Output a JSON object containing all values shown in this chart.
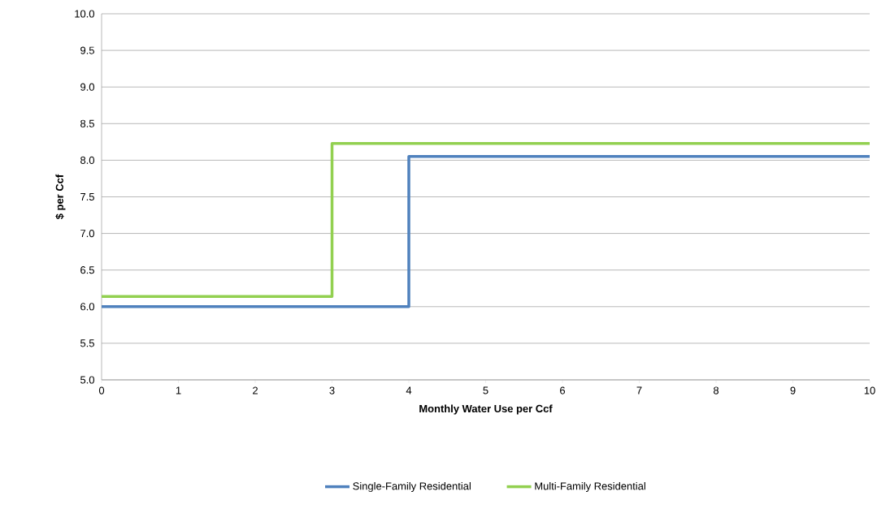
{
  "chart_data": {
    "type": "step",
    "xlabel": "Monthly Water Use per Ccf",
    "ylabel": "$ per Ccf",
    "xlim": [
      0,
      10
    ],
    "ylim": [
      5.0,
      10.0
    ],
    "xticks": [
      0,
      1,
      2,
      3,
      4,
      5,
      6,
      7,
      8,
      9,
      10
    ],
    "yticks": [
      {
        "value": 5.0,
        "label": "5.0"
      },
      {
        "value": 5.5,
        "label": "5.5"
      },
      {
        "value": 6.0,
        "label": "6.0"
      },
      {
        "value": 6.5,
        "label": "6.5"
      },
      {
        "value": 7.0,
        "label": "7.0"
      },
      {
        "value": 7.5,
        "label": "7.5"
      },
      {
        "value": 8.0,
        "label": "8.0"
      },
      {
        "value": 8.5,
        "label": "8.5"
      },
      {
        "value": 9.0,
        "label": "9.0"
      },
      {
        "value": 9.5,
        "label": "9.5"
      },
      {
        "value": 10.0,
        "label": "10.0"
      }
    ],
    "grid": "y",
    "legend": "bottom",
    "line_style": "solid",
    "marker": "none",
    "series": [
      {
        "name": "Single-Family Residential",
        "color": "#4f81bd",
        "x": [
          0,
          4,
          10
        ],
        "values": [
          6.0,
          8.05,
          8.05
        ]
      },
      {
        "name": "Multi-Family Residential",
        "color": "#92d050",
        "x": [
          0,
          3,
          10
        ],
        "values": [
          6.14,
          8.23,
          8.23
        ]
      }
    ]
  }
}
